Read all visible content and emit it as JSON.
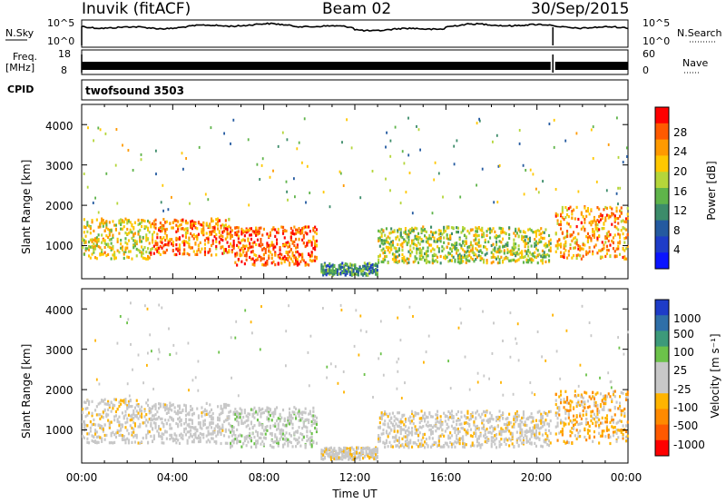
{
  "header": {
    "site": "Inuvik (fitACF)",
    "beam": "Beam 02",
    "date": "30/Sep/2015"
  },
  "top_panels": {
    "nsky": {
      "label": "N.Sky",
      "ticks": [
        "10^5",
        "10^0"
      ],
      "right_label": "N.Search",
      "right_ticks": [
        "10^5",
        "10^0"
      ]
    },
    "freq": {
      "label_line1": "Freq.",
      "label_line2": "[MHz]",
      "ticks": [
        "18",
        "8"
      ],
      "right_label": "Nave",
      "right_ticks": [
        "60",
        "0"
      ]
    },
    "cpid": {
      "label": "CPID",
      "value": "twofsound 3503"
    }
  },
  "xaxis": {
    "ticks": [
      "00:00",
      "04:00",
      "08:00",
      "12:00",
      "16:00",
      "20:00",
      "00:00"
    ],
    "label": "Time UT"
  },
  "power_panel": {
    "ylabel": "Slant Range [km]",
    "yticks": [
      "4000",
      "3000",
      "2000",
      "1000"
    ],
    "cbar_label": "Power [dB]",
    "cbar_ticks": [
      "28",
      "24",
      "20",
      "16",
      "12",
      "8",
      "4"
    ],
    "cbar_colors": [
      "#ff0000",
      "#ff5a00",
      "#ff9a00",
      "#ffc800",
      "#b5d63a",
      "#5fb44a",
      "#3c8c6a",
      "#245aa0",
      "#1e3cc8",
      "#0a14ff"
    ]
  },
  "velocity_panel": {
    "ylabel": "Slant Range [km]",
    "yticks": [
      "4000",
      "3000",
      "2000",
      "1000"
    ],
    "cbar_label": "Velocity [m s⁻¹]",
    "cbar_ticks": [
      "1000",
      "500",
      "100",
      "25",
      "-25",
      "-100",
      "-500",
      "-1000"
    ],
    "cbar_colors": [
      "#1e3cc8",
      "#2f6fa8",
      "#3d9a7a",
      "#6cc24a",
      "#c8c8c8",
      "#c8c8c8",
      "#ffb400",
      "#ff8a00",
      "#ff5a00",
      "#ff0000"
    ]
  },
  "chart_data": [
    {
      "type": "heatmap",
      "title": "Inuvik (fitACF) Beam 02 30/Sep/2015",
      "quantity": "Power [dB]",
      "xlabel": "Time UT",
      "ylabel": "Slant Range [km]",
      "x_range_hours": [
        0,
        24
      ],
      "ylim_km": [
        180,
        4500
      ],
      "colorbar_range_db": [
        0,
        32
      ],
      "scatter_bands": [
        {
          "t_start": 0,
          "t_end": 3,
          "range_low": 700,
          "range_high": 1700,
          "power_db": 20
        },
        {
          "t_start": 3,
          "t_end": 6.5,
          "range_low": 800,
          "range_high": 1700,
          "power_db": 26
        },
        {
          "t_start": 6.5,
          "t_end": 10.3,
          "range_low": 550,
          "range_high": 1500,
          "power_db": 28
        },
        {
          "t_start": 10.5,
          "t_end": 13,
          "range_low": 300,
          "range_high": 600,
          "power_db": 10
        },
        {
          "t_start": 13,
          "t_end": 20.6,
          "range_low": 600,
          "range_high": 1500,
          "power_db": 18
        },
        {
          "t_start": 20.8,
          "t_end": 24,
          "range_low": 700,
          "range_high": 2000,
          "power_db": 24
        }
      ]
    },
    {
      "type": "heatmap",
      "title": "Inuvik (fitACF) Beam 02 30/Sep/2015",
      "quantity": "Velocity [m s-1]",
      "xlabel": "Time UT",
      "ylabel": "Slant Range [km]",
      "x_range_hours": [
        0,
        24
      ],
      "ylim_km": [
        180,
        4500
      ],
      "colorbar_range_ms": [
        -1000,
        1000
      ],
      "scatter_bands": [
        {
          "t_start": 0,
          "t_end": 3,
          "range_low": 700,
          "range_high": 1800,
          "velocity_ms": -100
        },
        {
          "t_start": 3,
          "t_end": 6.5,
          "range_low": 700,
          "range_high": 1700,
          "velocity_ms": -50
        },
        {
          "t_start": 6.5,
          "t_end": 10.3,
          "range_low": 600,
          "range_high": 1600,
          "velocity_ms": 100
        },
        {
          "t_start": 10.5,
          "t_end": 13,
          "range_low": 300,
          "range_high": 600,
          "velocity_ms": -100
        },
        {
          "t_start": 13,
          "t_end": 20.6,
          "range_low": 600,
          "range_high": 1500,
          "velocity_ms": -100
        },
        {
          "t_start": 20.8,
          "t_end": 24,
          "range_low": 700,
          "range_high": 2000,
          "velocity_ms": -300
        }
      ]
    }
  ]
}
